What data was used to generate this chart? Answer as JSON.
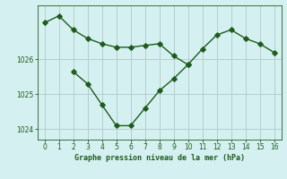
{
  "series1_x": [
    0,
    1,
    2,
    3,
    4,
    5,
    6,
    7,
    8,
    9,
    10,
    11,
    12,
    13,
    14,
    15,
    16
  ],
  "series1_y": [
    1027.05,
    1027.25,
    1026.85,
    1026.6,
    1026.45,
    1026.35,
    1026.35,
    1026.4,
    1026.45,
    1026.1,
    1025.85,
    1026.3,
    1026.7,
    1026.85,
    1026.6,
    1026.45,
    1026.2
  ],
  "series2_x": [
    2,
    3,
    4,
    5,
    6,
    7,
    8,
    9,
    10
  ],
  "series2_y": [
    1025.65,
    1025.3,
    1024.7,
    1024.1,
    1024.1,
    1024.6,
    1025.1,
    1025.45,
    1025.85
  ],
  "line_color": "#1e5c1e",
  "bg_color": "#d5f0f0",
  "grid_color": "#b0c8c8",
  "xlabel": "Graphe pression niveau de la mer (hPa)",
  "xlim": [
    -0.5,
    16.5
  ],
  "ylim": [
    1023.7,
    1027.55
  ],
  "yticks": [
    1024,
    1025,
    1026
  ],
  "xticks": [
    0,
    1,
    2,
    3,
    4,
    5,
    6,
    7,
    8,
    9,
    10,
    11,
    12,
    13,
    14,
    15,
    16
  ],
  "markersize": 2.8,
  "linewidth": 1.0
}
